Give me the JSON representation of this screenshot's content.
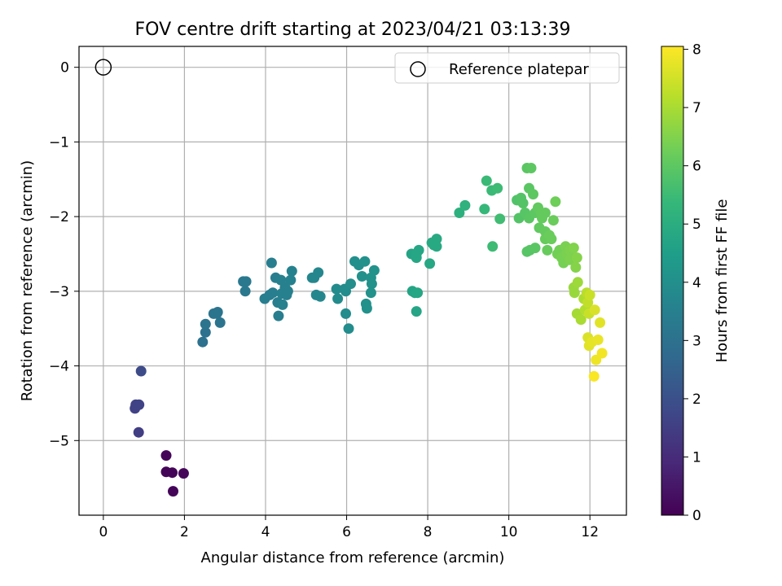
{
  "chart_data": {
    "type": "scatter",
    "title": "FOV centre drift starting at 2023/04/21 03:13:39",
    "xlabel": "Angular distance from reference (arcmin)",
    "ylabel": "Rotation from reference (arcmin)",
    "xlim": [
      -0.6,
      12.9
    ],
    "ylim": [
      -6.0,
      0.28
    ],
    "xticks": [
      0,
      2,
      4,
      6,
      8,
      10,
      12
    ],
    "yticks": [
      0,
      -1,
      -2,
      -3,
      -4,
      -5
    ],
    "xtick_labels": [
      "0",
      "2",
      "4",
      "6",
      "8",
      "10",
      "12"
    ],
    "ytick_labels": [
      "0",
      "−1",
      "−2",
      "−3",
      "−4",
      "−5"
    ],
    "grid": true,
    "legend": {
      "position": "top-right",
      "entries": [
        "Reference platepar"
      ]
    },
    "reference_point": {
      "x": 0,
      "y": 0,
      "name": "Reference platepar"
    },
    "colorbar": {
      "label": "Hours from first FF file",
      "colormap": "viridis",
      "range": [
        0,
        8.05
      ],
      "ticks": [
        0,
        1,
        2,
        3,
        4,
        5,
        6,
        7,
        8
      ],
      "tick_labels": [
        "0",
        "1",
        "2",
        "3",
        "4",
        "5",
        "6",
        "7",
        "8"
      ]
    },
    "colormap_stops": [
      "#440154",
      "#482878",
      "#3e4989",
      "#31688e",
      "#26828e",
      "#1f9e89",
      "#35b779",
      "#6ece58",
      "#b5de2b",
      "#fde725"
    ],
    "series": [
      {
        "points": [
          [
            1.55,
            -5.2,
            0.1
          ],
          [
            1.55,
            -5.42,
            0.1
          ],
          [
            1.7,
            -5.43,
            0.1
          ],
          [
            1.98,
            -5.44,
            0.12
          ],
          [
            1.72,
            -5.68,
            0.1
          ],
          [
            0.78,
            -4.57,
            1.6
          ],
          [
            0.8,
            -4.52,
            1.6
          ],
          [
            0.88,
            -4.52,
            1.62
          ],
          [
            0.87,
            -4.89,
            1.5
          ],
          [
            0.93,
            -4.07,
            1.85
          ],
          [
            2.45,
            -3.68,
            3.0
          ],
          [
            2.52,
            -3.55,
            3.0
          ],
          [
            2.52,
            -3.44,
            3.05
          ],
          [
            2.72,
            -3.3,
            3.1
          ],
          [
            2.8,
            -3.3,
            3.12
          ],
          [
            2.82,
            -3.28,
            3.1
          ],
          [
            2.88,
            -3.42,
            3.1
          ],
          [
            3.45,
            -2.87,
            3.25
          ],
          [
            3.52,
            -2.87,
            3.25
          ],
          [
            3.5,
            -3.0,
            3.25
          ],
          [
            3.98,
            -3.1,
            3.4
          ],
          [
            4.1,
            -3.05,
            3.4
          ],
          [
            4.15,
            -2.62,
            3.45
          ],
          [
            4.18,
            -3.02,
            3.4
          ],
          [
            4.25,
            -2.82,
            3.45
          ],
          [
            4.3,
            -3.15,
            3.45
          ],
          [
            4.32,
            -3.33,
            3.45
          ],
          [
            4.38,
            -2.85,
            3.5
          ],
          [
            4.4,
            -3.03,
            3.5
          ],
          [
            4.42,
            -3.18,
            3.5
          ],
          [
            4.48,
            -2.95,
            3.5
          ],
          [
            4.52,
            -3.05,
            3.5
          ],
          [
            4.55,
            -3.0,
            3.5
          ],
          [
            4.62,
            -2.85,
            3.55
          ],
          [
            4.65,
            -2.73,
            3.55
          ],
          [
            5.15,
            -2.82,
            3.7
          ],
          [
            5.2,
            -2.82,
            3.72
          ],
          [
            5.25,
            -3.05,
            3.72
          ],
          [
            5.3,
            -2.75,
            3.75
          ],
          [
            5.35,
            -3.07,
            3.75
          ],
          [
            5.75,
            -2.97,
            3.85
          ],
          [
            5.78,
            -3.1,
            3.85
          ],
          [
            5.95,
            -2.97,
            3.9
          ],
          [
            5.98,
            -3.0,
            3.9
          ],
          [
            5.98,
            -3.3,
            3.9
          ],
          [
            6.05,
            -3.5,
            3.9
          ],
          [
            6.1,
            -2.9,
            3.95
          ],
          [
            6.2,
            -2.6,
            4.0
          ],
          [
            6.3,
            -2.65,
            4.0
          ],
          [
            6.38,
            -2.8,
            4.05
          ],
          [
            6.45,
            -2.6,
            4.05
          ],
          [
            6.48,
            -3.17,
            4.05
          ],
          [
            6.5,
            -3.23,
            4.05
          ],
          [
            6.6,
            -2.82,
            4.1
          ],
          [
            6.62,
            -2.9,
            4.1
          ],
          [
            6.6,
            -3.02,
            4.1
          ],
          [
            6.68,
            -2.72,
            4.1
          ],
          [
            7.6,
            -2.5,
            4.7
          ],
          [
            7.62,
            -3.0,
            4.7
          ],
          [
            7.68,
            -3.02,
            4.72
          ],
          [
            7.72,
            -2.5,
            4.75
          ],
          [
            7.75,
            -3.02,
            4.75
          ],
          [
            7.72,
            -2.55,
            4.75
          ],
          [
            7.78,
            -2.45,
            4.75
          ],
          [
            7.72,
            -3.27,
            4.72
          ],
          [
            8.05,
            -2.63,
            4.8
          ],
          [
            8.1,
            -2.35,
            4.85
          ],
          [
            8.15,
            -2.38,
            4.85
          ],
          [
            8.22,
            -2.3,
            4.85
          ],
          [
            8.22,
            -2.4,
            4.85
          ],
          [
            8.78,
            -1.95,
            5.1
          ],
          [
            8.92,
            -1.85,
            5.15
          ],
          [
            9.4,
            -1.9,
            5.35
          ],
          [
            9.45,
            -1.52,
            5.45
          ],
          [
            9.58,
            -1.65,
            5.45
          ],
          [
            9.6,
            -2.4,
            5.5
          ],
          [
            9.72,
            -1.62,
            5.5
          ],
          [
            9.78,
            -2.03,
            5.55
          ],
          [
            10.2,
            -1.78,
            5.8
          ],
          [
            10.25,
            -2.02,
            5.85
          ],
          [
            10.3,
            -1.75,
            5.85
          ],
          [
            10.35,
            -1.82,
            5.85
          ],
          [
            10.4,
            -1.95,
            5.9
          ],
          [
            10.45,
            -1.35,
            5.95
          ],
          [
            10.5,
            -1.62,
            5.95
          ],
          [
            10.55,
            -1.35,
            6.0
          ],
          [
            10.5,
            -2.02,
            5.95
          ],
          [
            10.6,
            -1.7,
            6.0
          ],
          [
            10.65,
            -1.95,
            6.0
          ],
          [
            10.72,
            -1.88,
            6.05
          ],
          [
            10.45,
            -2.47,
            5.9
          ],
          [
            10.52,
            -2.45,
            5.9
          ],
          [
            10.65,
            -2.42,
            5.95
          ],
          [
            10.75,
            -2.15,
            6.05
          ],
          [
            10.8,
            -1.95,
            6.1
          ],
          [
            10.82,
            -2.02,
            6.1
          ],
          [
            10.9,
            -1.95,
            6.1
          ],
          [
            10.9,
            -2.2,
            6.1
          ],
          [
            10.9,
            -2.3,
            6.15
          ],
          [
            10.95,
            -2.45,
            6.15
          ],
          [
            11.0,
            -2.25,
            6.2
          ],
          [
            11.1,
            -2.05,
            6.2
          ],
          [
            11.15,
            -1.8,
            6.25
          ],
          [
            11.05,
            -2.3,
            6.2
          ],
          [
            11.2,
            -2.5,
            6.3
          ],
          [
            11.25,
            -2.45,
            6.3
          ],
          [
            11.3,
            -2.55,
            6.35
          ],
          [
            11.35,
            -2.62,
            6.35
          ],
          [
            11.4,
            -2.4,
            6.4
          ],
          [
            11.42,
            -2.5,
            6.4
          ],
          [
            11.5,
            -2.45,
            6.45
          ],
          [
            11.5,
            -2.58,
            6.45
          ],
          [
            11.55,
            -2.55,
            6.45
          ],
          [
            11.6,
            -2.42,
            6.5
          ],
          [
            11.65,
            -2.68,
            6.55
          ],
          [
            11.68,
            -2.55,
            6.55
          ],
          [
            11.6,
            -2.95,
            6.8
          ],
          [
            11.62,
            -3.02,
            6.8
          ],
          [
            11.7,
            -2.88,
            6.85
          ],
          [
            11.68,
            -3.3,
            6.95
          ],
          [
            11.78,
            -3.38,
            7.0
          ],
          [
            11.85,
            -3.1,
            7.05
          ],
          [
            11.88,
            -3.25,
            7.1
          ],
          [
            11.92,
            -3.02,
            7.2
          ],
          [
            11.95,
            -3.15,
            7.3
          ],
          [
            12.0,
            -3.05,
            7.4
          ],
          [
            11.98,
            -3.3,
            7.4
          ],
          [
            11.95,
            -3.62,
            7.6
          ],
          [
            11.98,
            -3.73,
            7.7
          ],
          [
            12.05,
            -3.68,
            7.75
          ],
          [
            12.12,
            -3.25,
            7.6
          ],
          [
            12.15,
            -3.92,
            7.85
          ],
          [
            12.2,
            -3.65,
            7.8
          ],
          [
            12.25,
            -3.42,
            7.7
          ],
          [
            12.3,
            -3.83,
            7.9
          ],
          [
            12.1,
            -4.14,
            8.0
          ]
        ]
      }
    ]
  }
}
